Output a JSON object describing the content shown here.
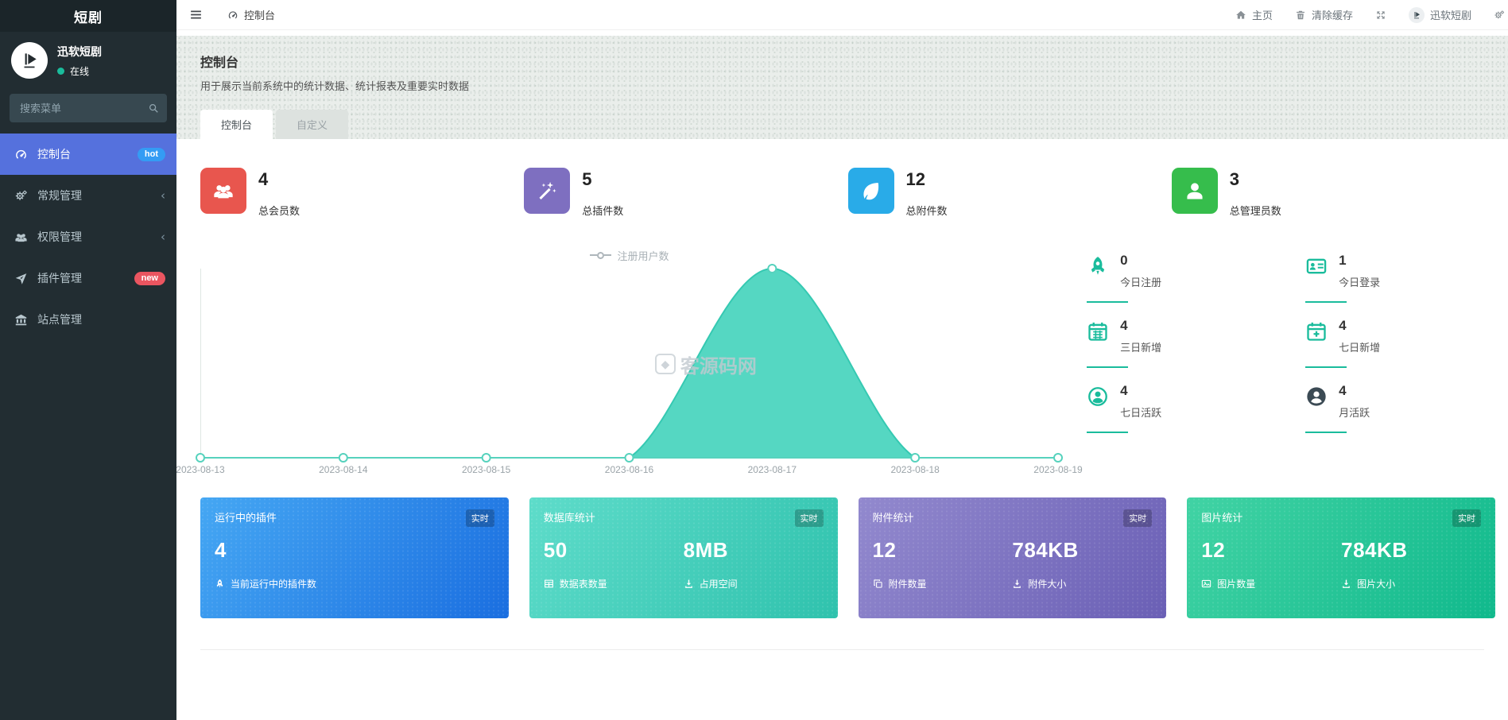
{
  "app": {
    "title": "短剧"
  },
  "sidebar": {
    "brand": "迅软短剧",
    "status": "在线",
    "search_placeholder": "搜索菜单",
    "items": [
      {
        "label": "控制台",
        "icon": "dashboard-icon",
        "badge": "hot",
        "active": true
      },
      {
        "label": "常规管理",
        "icon": "gears-icon",
        "chevron": "‹"
      },
      {
        "label": "权限管理",
        "icon": "users-icon",
        "chevron": "‹"
      },
      {
        "label": "插件管理",
        "icon": "plane-icon",
        "badge": "new"
      },
      {
        "label": "站点管理",
        "icon": "bank-icon"
      }
    ]
  },
  "topbar": {
    "tab": "控制台",
    "home": "主页",
    "clear_cache": "清除缓存",
    "brand": "迅软短剧"
  },
  "hero": {
    "title": "控制台",
    "description": "用于展示当前系统中的统计数据、统计报表及重要实时数据",
    "tabs": [
      {
        "label": "控制台",
        "active": true
      },
      {
        "label": "自定义",
        "active": false
      }
    ]
  },
  "stats": [
    {
      "value": "4",
      "label": "总会员数",
      "icon": "group-icon",
      "color": "#e8564e"
    },
    {
      "value": "5",
      "label": "总插件数",
      "icon": "magic-icon",
      "color": "#7e6fc0"
    },
    {
      "value": "12",
      "label": "总附件数",
      "icon": "leaf-icon",
      "color": "#29abe8"
    },
    {
      "value": "3",
      "label": "总管理员数",
      "icon": "user-icon",
      "color": "#36bd4c"
    }
  ],
  "chart_data": {
    "type": "area",
    "legend": [
      "注册用户数"
    ],
    "legend_position": "top-center",
    "x": [
      "2023-08-13",
      "2023-08-14",
      "2023-08-15",
      "2023-08-16",
      "2023-08-17",
      "2023-08-18",
      "2023-08-19"
    ],
    "series": [
      {
        "name": "注册用户数",
        "values": [
          0,
          0,
          0,
          0,
          4,
          0,
          0
        ]
      }
    ],
    "ylim": [
      0,
      4
    ],
    "smooth": true,
    "grid": false,
    "fill_color": "#4ed5bf",
    "line_color": "#35c9b2",
    "axis_color": "#56d2bd"
  },
  "mini_stats": [
    {
      "value": "0",
      "label": "今日注册",
      "icon": "rocket-icon"
    },
    {
      "value": "1",
      "label": "今日登录",
      "icon": "id-card-icon"
    },
    {
      "value": "4",
      "label": "三日新增",
      "icon": "calendar-icon"
    },
    {
      "value": "4",
      "label": "七日新增",
      "icon": "calendar-plus-icon"
    },
    {
      "value": "4",
      "label": "七日活跃",
      "icon": "user-circle-icon"
    },
    {
      "value": "4",
      "label": "月活跃",
      "icon": "user-circle-filled-icon"
    }
  ],
  "cards": [
    {
      "title": "运行中的插件",
      "badge": "实时",
      "accent": "#1a6ee0",
      "metrics": [
        {
          "value": "4",
          "label": "当前运行中的插件数",
          "icon": "rocket-icon"
        }
      ]
    },
    {
      "title": "数据库统计",
      "badge": "实时",
      "accent": "#2fc2ad",
      "metrics": [
        {
          "value": "50",
          "label": "数据表数量",
          "icon": "table-icon"
        },
        {
          "value": "8MB",
          "label": "占用空间",
          "icon": "download-icon"
        }
      ]
    },
    {
      "title": "附件统计",
      "badge": "实时",
      "accent": "#6a5fb5",
      "metrics": [
        {
          "value": "12",
          "label": "附件数量",
          "icon": "clone-icon"
        },
        {
          "value": "784KB",
          "label": "附件大小",
          "icon": "download-icon"
        }
      ]
    },
    {
      "title": "图片统计",
      "badge": "实时",
      "accent": "#10b98c",
      "metrics": [
        {
          "value": "12",
          "label": "图片数量",
          "icon": "image-icon"
        },
        {
          "value": "784KB",
          "label": "图片大小",
          "icon": "download-icon"
        }
      ]
    }
  ],
  "watermark": {
    "text": "客源码网"
  },
  "colors": {
    "sidebar_bg": "#222d32",
    "active_item": "#5571dd",
    "hot_badge": "#349cf4",
    "new_badge": "#ea5560",
    "accent_teal": "#1abc9c"
  }
}
